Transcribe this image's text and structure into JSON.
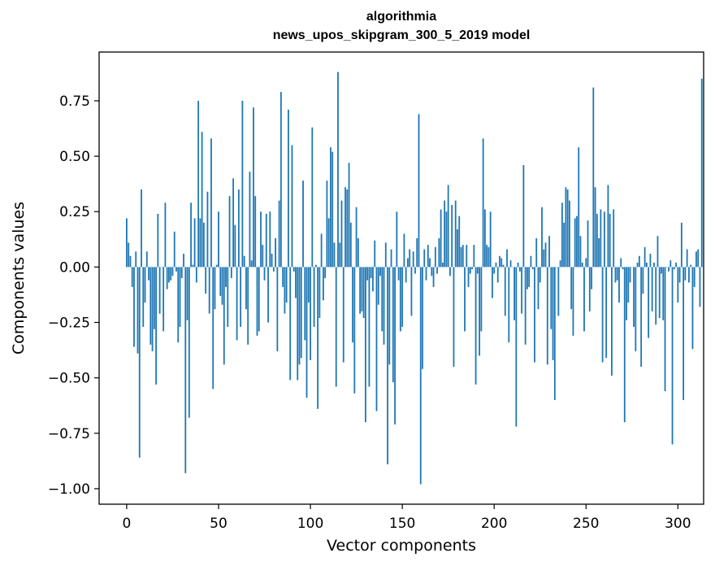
{
  "chart_data": {
    "type": "bar",
    "title": "algorithmia",
    "subtitle": "news_upos_skipgram_300_5_2019 model",
    "xlabel": "Vector components",
    "ylabel": "Components values",
    "xlim": [
      -15,
      314
    ],
    "ylim": [
      -1.07,
      0.97
    ],
    "xticks": [
      0,
      50,
      100,
      150,
      200,
      250,
      300
    ],
    "yticks": [
      -1.0,
      -0.75,
      -0.5,
      -0.25,
      0.0,
      0.25,
      0.5,
      0.75
    ],
    "ytick_labels": [
      "−1.00",
      "−0.75",
      "−0.50",
      "−0.25",
      "0.00",
      "0.25",
      "0.50",
      "0.75"
    ],
    "bar_color": "#1f77b4",
    "grid": false,
    "values": [
      0.22,
      0.11,
      0.05,
      -0.09,
      -0.36,
      0.07,
      -0.39,
      -0.86,
      0.35,
      -0.27,
      -0.16,
      0.07,
      -0.06,
      -0.35,
      -0.38,
      -0.28,
      -0.53,
      0.24,
      -0.21,
      0.0,
      -0.29,
      0.29,
      -0.1,
      -0.07,
      -0.06,
      -0.04,
      0.16,
      -0.02,
      -0.34,
      -0.27,
      -0.05,
      0.06,
      -0.93,
      -0.24,
      -0.68,
      0.29,
      0.01,
      0.22,
      -0.07,
      0.75,
      0.22,
      0.61,
      0.2,
      -0.12,
      0.34,
      -0.21,
      0.58,
      -0.55,
      -0.19,
      0.01,
      0.25,
      -0.13,
      -0.17,
      -0.44,
      -0.09,
      -0.27,
      0.32,
      -0.05,
      0.4,
      0.19,
      -0.33,
      0.35,
      -0.27,
      0.75,
      0.05,
      -0.19,
      -0.35,
      0.43,
      0.03,
      0.72,
      0.32,
      -0.31,
      -0.29,
      0.25,
      0.1,
      -0.06,
      0.24,
      -0.25,
      0.25,
      0.06,
      -0.02,
      0.13,
      -0.38,
      0.3,
      0.79,
      -0.09,
      -0.21,
      -0.16,
      0.71,
      -0.51,
      0.55,
      -0.02,
      -0.14,
      -0.51,
      -0.44,
      -0.41,
      0.39,
      -0.33,
      -0.59,
      -0.16,
      -0.42,
      0.63,
      -0.27,
      0.01,
      -0.64,
      -0.23,
      0.15,
      -0.15,
      -0.05,
      0.39,
      0.22,
      0.54,
      0.52,
      0.11,
      -0.54,
      0.88,
      0.11,
      0.3,
      -0.43,
      0.36,
      0.35,
      0.47,
      0.2,
      -0.34,
      -0.57,
      0.27,
      0.13,
      -0.21,
      -0.2,
      -0.23,
      -0.7,
      -0.06,
      -0.54,
      -0.05,
      -0.11,
      0.12,
      -0.65,
      -0.17,
      -0.04,
      -0.29,
      -0.35,
      0.11,
      -0.89,
      -0.44,
      0.08,
      -0.52,
      -0.71,
      0.25,
      -0.06,
      -0.29,
      -0.27,
      0.15,
      -0.07,
      0.04,
      0.08,
      -0.22,
      0.07,
      -0.03,
      0.13,
      0.69,
      -0.98,
      -0.46,
      0.08,
      -0.06,
      0.1,
      0.04,
      -0.04,
      -0.09,
      0.09,
      -0.03,
      0.13,
      0.26,
      0.02,
      0.3,
      0.25,
      0.37,
      -0.04,
      0.28,
      -0.45,
      0.3,
      0.17,
      0.23,
      0.09,
      0.1,
      -0.29,
      0.1,
      -0.09,
      -0.03,
      -0.01,
      0.1,
      -0.53,
      -0.03,
      -0.4,
      -0.29,
      0.58,
      0.26,
      0.1,
      0.09,
      0.25,
      -0.14,
      -0.03,
      0.02,
      -0.07,
      0.05,
      0.04,
      0.01,
      -0.22,
      0.08,
      -0.34,
      0.03,
      0.0,
      -0.24,
      -0.72,
      0.02,
      -0.02,
      -0.21,
      0.46,
      -0.35,
      -0.1,
      -0.09,
      0.05,
      -0.01,
      -0.43,
      0.13,
      -0.19,
      -0.07,
      0.27,
      0.08,
      0.11,
      -0.44,
      0.14,
      -0.28,
      -0.42,
      -0.6,
      0.0,
      -0.22,
      0.03,
      0.29,
      0.2,
      0.36,
      0.35,
      0.3,
      -0.19,
      -0.31,
      0.22,
      0.23,
      0.54,
      0.14,
      0.02,
      -0.29,
      0.04,
      0.21,
      -0.2,
      -0.1,
      0.81,
      0.36,
      0.24,
      0.13,
      0.26,
      -0.43,
      0.25,
      -0.41,
      0.37,
      0.24,
      -0.49,
      0.26,
      -0.07,
      -0.06,
      -0.16,
      0.04,
      -0.01,
      -0.7,
      -0.24,
      -0.16,
      -0.07,
      0.0,
      -0.27,
      -0.38,
      0.02,
      0.05,
      -0.45,
      -0.12,
      0.09,
      0.02,
      -0.32,
      0.06,
      -0.2,
      0.02,
      -0.26,
      0.14,
      -0.23,
      -0.03,
      -0.24,
      -0.56,
      0.0,
      -0.02,
      0.03,
      -0.8,
      -0.01,
      0.02,
      -0.16,
      -0.07,
      0.2,
      -0.6,
      -0.06,
      0.08,
      -0.07,
      0.01,
      -0.37,
      -0.09,
      0.07,
      0.08,
      -0.18,
      0.85
    ]
  }
}
